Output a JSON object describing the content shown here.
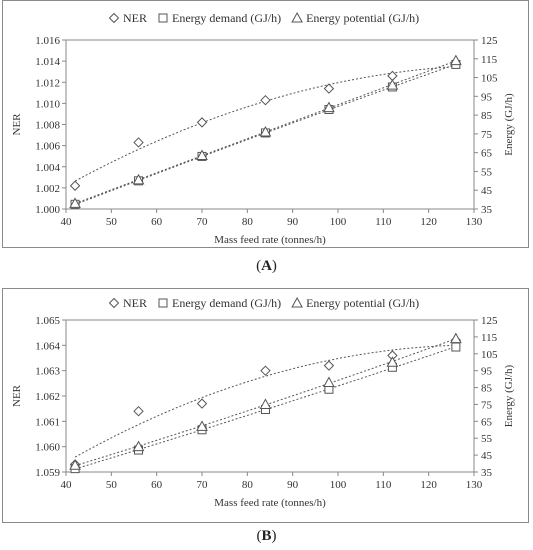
{
  "chart_data": [
    {
      "type": "line",
      "panel_label": "A",
      "xlabel": "Mass feed rate  (tonnes/h)",
      "ylabel": "NER",
      "y2label": "Energy (GJ/h)",
      "xlim": [
        40,
        130
      ],
      "xticks": [
        40,
        50,
        60,
        70,
        80,
        90,
        100,
        110,
        120,
        130
      ],
      "ylim": [
        1.0,
        1.016
      ],
      "yticks": [
        "1.000",
        "1.002",
        "1.004",
        "1.006",
        "1.008",
        "1.010",
        "1.012",
        "1.014",
        "1.016"
      ],
      "y2lim": [
        35,
        125
      ],
      "y2ticks": [
        35,
        45,
        55,
        65,
        75,
        85,
        95,
        105,
        115,
        125
      ],
      "legend_position": "top",
      "x": [
        42,
        56,
        70,
        84,
        98,
        112,
        126
      ],
      "series": [
        {
          "name": "NER",
          "marker": "diamond",
          "axis": "left",
          "values": [
            1.0022,
            1.0063,
            1.0082,
            1.0103,
            1.0114,
            1.0126,
            1.0138
          ]
        },
        {
          "name": "Energy demand (GJ/h)",
          "marker": "square",
          "axis": "right",
          "values": [
            37.5,
            50,
            63,
            75.5,
            88,
            100,
            112
          ]
        },
        {
          "name": "Energy potential (GJ/h)",
          "marker": "triangle",
          "axis": "right",
          "values": [
            38,
            50.5,
            63.5,
            76,
            89,
            101,
            114
          ]
        }
      ]
    },
    {
      "type": "line",
      "panel_label": "B",
      "xlabel": "Mass feed rate (tonnes/h)",
      "ylabel": "NER",
      "y2label": "Energy (GJ/h)",
      "xlim": [
        40,
        130
      ],
      "xticks": [
        40,
        50,
        60,
        70,
        80,
        90,
        100,
        110,
        120,
        130
      ],
      "ylim": [
        1.059,
        1.065
      ],
      "yticks": [
        "1.059",
        "1.060",
        "1.061",
        "1.062",
        "1.063",
        "1.064",
        "1.065"
      ],
      "y2lim": [
        35,
        125
      ],
      "y2ticks": [
        35,
        45,
        55,
        65,
        75,
        85,
        95,
        105,
        115,
        125
      ],
      "legend_position": "top",
      "x": [
        42,
        56,
        70,
        84,
        98,
        112,
        126
      ],
      "series": [
        {
          "name": "NER",
          "marker": "diamond",
          "axis": "left",
          "values": [
            1.0593,
            1.0614,
            1.0617,
            1.063,
            1.0632,
            1.0636,
            1.0642
          ]
        },
        {
          "name": "Energy demand (GJ/h)",
          "marker": "square",
          "axis": "right",
          "values": [
            37,
            48,
            60,
            72,
            84,
            97,
            109
          ]
        },
        {
          "name": "Energy potential (GJ/h)",
          "marker": "triangle",
          "axis": "right",
          "values": [
            39,
            50,
            62,
            75,
            88,
            100,
            114
          ]
        }
      ]
    }
  ]
}
